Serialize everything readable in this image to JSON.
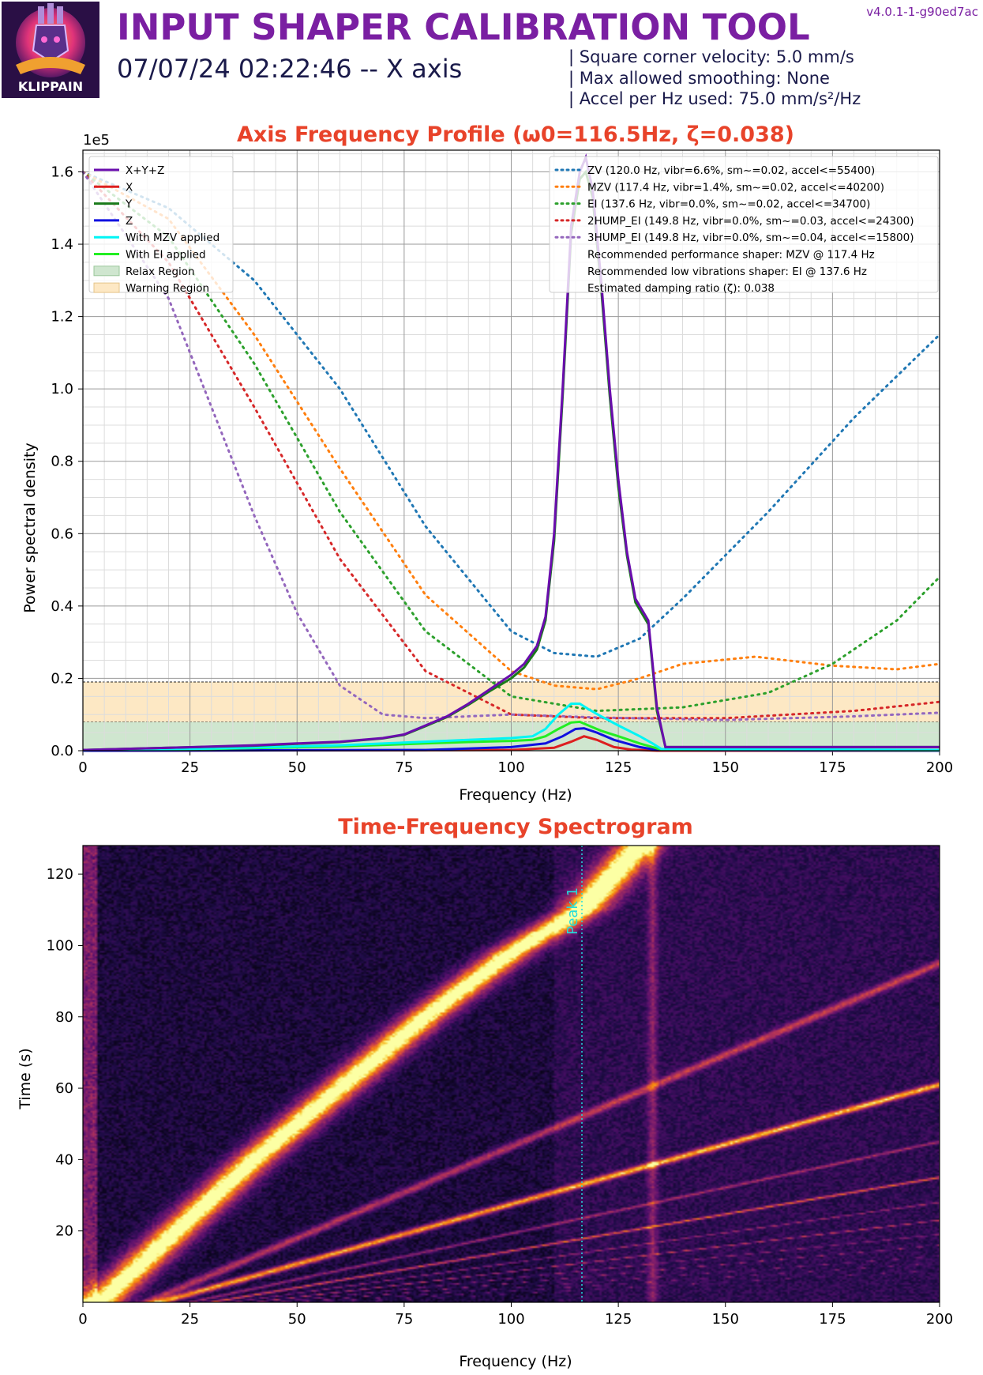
{
  "header": {
    "title": "INPUT SHAPER CALIBRATION TOOL",
    "subtitle": "07/07/24 02:22:46 -- X axis",
    "version": "v4.0.1-1-g90ed7ac",
    "logo_text": "KLIPPAIN",
    "params": [
      "| Square corner velocity: 5.0 mm/s",
      "| Max allowed smoothing: None",
      "| Accel per Hz used: 75.0 mm/s²/Hz"
    ]
  },
  "colors": {
    "title_purple": "#7a1fa2",
    "chart_title_red": "#e8432a",
    "xyz": "#6a0dad",
    "x": "#dd1f1f",
    "y": "#1a7a1a",
    "z": "#1010e0",
    "mzv_applied": "#00f5f5",
    "ei_applied": "#22ee22",
    "relax_region": "#cfe6cf",
    "warning_region": "#fde8c4",
    "shaper_zv": "#1f77b4",
    "shaper_mzv": "#ff7f0e",
    "shaper_ei": "#2ca02c",
    "shaper_2hump": "#d62728",
    "shaper_3hump": "#9467bd",
    "peak_line": "#22dddd"
  },
  "chart_data": [
    {
      "type": "line",
      "title": "Axis Frequency Profile (ω0=116.5Hz, ζ=0.038)",
      "xlabel": "Frequency (Hz)",
      "ylabel": "Power spectral density",
      "y_scale_label": "1e5",
      "xlim": [
        0,
        200
      ],
      "ylim": [
        0,
        1.66
      ],
      "x_ticks": [
        "0",
        "25",
        "50",
        "75",
        "100",
        "125",
        "150",
        "175",
        "200"
      ],
      "y_ticks": [
        "0.0",
        "0.2",
        "0.4",
        "0.6",
        "0.8",
        "1.0",
        "1.2",
        "1.4",
        "1.6"
      ],
      "grid": true,
      "regions": [
        {
          "name": "Relax Region",
          "from": 0,
          "to": 0.08
        },
        {
          "name": "Warning Region",
          "from": 0.08,
          "to": 0.19
        }
      ],
      "series": [
        {
          "name": "X+Y+Z",
          "x": [
            0,
            20,
            40,
            50,
            60,
            70,
            75,
            80,
            85,
            90,
            95,
            100,
            103,
            106,
            108,
            110,
            112,
            114,
            116,
            117.4,
            119,
            121,
            123,
            125,
            127,
            129,
            132,
            134,
            136,
            150,
            175,
            200
          ],
          "y": [
            0.002,
            0.008,
            0.015,
            0.02,
            0.025,
            0.035,
            0.045,
            0.07,
            0.095,
            0.13,
            0.17,
            0.21,
            0.24,
            0.29,
            0.37,
            0.6,
            1.0,
            1.45,
            1.6,
            1.64,
            1.55,
            1.3,
            1.0,
            0.75,
            0.55,
            0.42,
            0.36,
            0.12,
            0.01,
            0.01,
            0.01,
            0.01
          ]
        },
        {
          "name": "X",
          "x": [
            0,
            100,
            110,
            114,
            117,
            120,
            124,
            128,
            134,
            200
          ],
          "y": [
            0.0,
            0.002,
            0.008,
            0.025,
            0.04,
            0.03,
            0.01,
            0.003,
            0.0,
            0.0
          ]
        },
        {
          "name": "Y",
          "x": [
            0,
            20,
            40,
            50,
            60,
            70,
            75,
            80,
            85,
            90,
            95,
            100,
            103,
            106,
            108,
            110,
            112,
            114,
            116,
            117.4,
            119,
            121,
            123,
            125,
            127,
            129,
            132,
            134,
            136,
            150,
            175,
            200
          ],
          "y": [
            0.002,
            0.008,
            0.014,
            0.019,
            0.024,
            0.034,
            0.044,
            0.068,
            0.093,
            0.127,
            0.165,
            0.2,
            0.23,
            0.28,
            0.36,
            0.58,
            0.98,
            1.43,
            1.58,
            1.6,
            1.53,
            1.28,
            0.98,
            0.73,
            0.54,
            0.41,
            0.35,
            0.11,
            0.01,
            0.01,
            0.01,
            0.01
          ]
        },
        {
          "name": "Z",
          "x": [
            0,
            80,
            100,
            108,
            112,
            115,
            117,
            120,
            124,
            130,
            134,
            200
          ],
          "y": [
            0.0,
            0.002,
            0.01,
            0.02,
            0.04,
            0.06,
            0.062,
            0.05,
            0.03,
            0.01,
            0.002,
            0.0
          ]
        },
        {
          "name": "With MZV applied",
          "x": [
            0,
            30,
            60,
            80,
            90,
            100,
            105,
            108,
            111,
            114,
            116,
            118,
            121,
            125,
            130,
            133,
            135,
            200
          ],
          "y": [
            0.002,
            0.006,
            0.015,
            0.025,
            0.03,
            0.035,
            0.04,
            0.06,
            0.1,
            0.13,
            0.13,
            0.115,
            0.095,
            0.07,
            0.04,
            0.02,
            0.005,
            0.002
          ]
        },
        {
          "name": "With EI applied",
          "x": [
            0,
            30,
            60,
            80,
            90,
            100,
            105,
            108,
            111,
            114,
            116,
            118,
            121,
            125,
            130,
            133,
            135,
            200
          ],
          "y": [
            0.002,
            0.005,
            0.012,
            0.02,
            0.024,
            0.027,
            0.03,
            0.04,
            0.06,
            0.078,
            0.08,
            0.07,
            0.055,
            0.04,
            0.02,
            0.01,
            0.003,
            0.001
          ]
        },
        {
          "name": "ZV (120.0 Hz, vibr=6.6%, sm~=0.02, accel<=55400)",
          "dotted": true,
          "x": [
            0,
            20,
            40,
            60,
            80,
            100,
            110,
            120,
            130,
            140,
            160,
            180,
            200
          ],
          "y": [
            1.6,
            1.5,
            1.3,
            1.0,
            0.62,
            0.33,
            0.27,
            0.26,
            0.31,
            0.42,
            0.66,
            0.92,
            1.15
          ]
        },
        {
          "name": "MZV (117.4 Hz, vibr=1.4%, sm~=0.02, accel<=40200)",
          "dotted": true,
          "x": [
            0,
            20,
            40,
            60,
            80,
            100,
            110,
            120,
            130,
            140,
            157,
            175,
            190,
            200
          ],
          "y": [
            1.6,
            1.47,
            1.15,
            0.78,
            0.43,
            0.22,
            0.18,
            0.17,
            0.2,
            0.24,
            0.26,
            0.235,
            0.225,
            0.24
          ]
        },
        {
          "name": "EI (137.6 Hz, vibr=0.0%, sm~=0.02, accel<=34700)",
          "dotted": true,
          "x": [
            0,
            20,
            40,
            60,
            80,
            100,
            120,
            140,
            160,
            175,
            190,
            200
          ],
          "y": [
            1.6,
            1.42,
            1.07,
            0.66,
            0.33,
            0.15,
            0.11,
            0.12,
            0.16,
            0.24,
            0.36,
            0.48
          ]
        },
        {
          "name": "2HUMP_EI (149.8 Hz, vibr=0.0%, sm~=0.03, accel<=24300)",
          "dotted": true,
          "x": [
            0,
            20,
            40,
            60,
            80,
            100,
            120,
            150,
            180,
            200
          ],
          "y": [
            1.6,
            1.35,
            0.95,
            0.53,
            0.22,
            0.1,
            0.09,
            0.09,
            0.11,
            0.135
          ]
        },
        {
          "name": "3HUMP_EI (149.8 Hz, vibr=0.0%, sm~=0.04, accel<=15800)",
          "dotted": true,
          "x": [
            0,
            20,
            30,
            40,
            50,
            60,
            70,
            80,
            100,
            120,
            150,
            180,
            200
          ],
          "y": [
            1.6,
            1.25,
            0.95,
            0.65,
            0.38,
            0.18,
            0.1,
            0.09,
            0.1,
            0.092,
            0.085,
            0.095,
            0.105
          ]
        }
      ],
      "legend_left": [
        "X+Y+Z",
        "X",
        "Y",
        "Z",
        "With MZV applied",
        "With EI applied",
        "Relax Region",
        "Warning Region"
      ],
      "legend_right": [
        "ZV (120.0 Hz, vibr=6.6%, sm~=0.02, accel<=55400)",
        "MZV (117.4 Hz, vibr=1.4%, sm~=0.02, accel<=40200)",
        "EI (137.6 Hz, vibr=0.0%, sm~=0.02, accel<=34700)",
        "2HUMP_EI (149.8 Hz, vibr=0.0%, sm~=0.03, accel<=24300)",
        "3HUMP_EI (149.8 Hz, vibr=0.0%, sm~=0.04, accel<=15800)",
        "Recommended performance shaper: MZV @ 117.4 Hz",
        "Recommended low vibrations shaper: EI @ 137.6 Hz",
        "Estimated damping ratio (ζ): 0.038"
      ]
    },
    {
      "type": "heatmap",
      "title": "Time-Frequency Spectrogram",
      "xlabel": "Frequency (Hz)",
      "ylabel": "Time (s)",
      "xlim": [
        0,
        200
      ],
      "ylim": [
        0,
        128
      ],
      "x_ticks": [
        "0",
        "25",
        "50",
        "75",
        "100",
        "125",
        "150",
        "175",
        "200"
      ],
      "y_ticks": [
        "20",
        "40",
        "60",
        "80",
        "100",
        "120"
      ],
      "peak_marker": {
        "label": "Peak 1",
        "freq": 116.5
      },
      "harmonic_lines": [
        {
          "name": "fundamental",
          "points": [
            [
              4,
              0
            ],
            [
              20,
              18
            ],
            [
              40,
              40
            ],
            [
              60,
              60
            ],
            [
              80,
              80
            ],
            [
              100,
              98
            ],
            [
              116.5,
              110
            ],
            [
              130,
              128
            ]
          ],
          "intensity": 1.0,
          "width": 14
        },
        {
          "name": "h2",
          "points": [
            [
              15,
              0
            ],
            [
              200,
              95
            ]
          ],
          "intensity": 0.45,
          "width": 6
        },
        {
          "name": "h3",
          "points": [
            [
              18,
              0
            ],
            [
              200,
              61
            ]
          ],
          "intensity": 0.75,
          "width": 7
        },
        {
          "name": "h4",
          "points": [
            [
              25,
              0
            ],
            [
              200,
              45
            ]
          ],
          "intensity": 0.35,
          "width": 4
        },
        {
          "name": "h5",
          "points": [
            [
              30,
              0
            ],
            [
              200,
              35
            ]
          ],
          "intensity": 0.55,
          "width": 4
        },
        {
          "name": "h6",
          "points": [
            [
              35,
              0
            ],
            [
              200,
              28
            ]
          ],
          "intensity": 0.3,
          "width": 3
        },
        {
          "name": "h7",
          "points": [
            [
              40,
              0
            ],
            [
              200,
              23
            ]
          ],
          "intensity": 0.4,
          "width": 3
        },
        {
          "name": "h8",
          "points": [
            [
              45,
              0
            ],
            [
              200,
              19
            ]
          ],
          "intensity": 0.25,
          "width": 3
        },
        {
          "name": "h9",
          "points": [
            [
              50,
              0
            ],
            [
              200,
              16
            ]
          ],
          "intensity": 0.3,
          "width": 2
        },
        {
          "name": "h10",
          "points": [
            [
              55,
              0
            ],
            [
              200,
              13
            ]
          ],
          "intensity": 0.22,
          "width": 2
        },
        {
          "name": "h11",
          "points": [
            [
              60,
              0
            ],
            [
              200,
              11
            ]
          ],
          "intensity": 0.22,
          "width": 2
        },
        {
          "name": "h12",
          "points": [
            [
              65,
              0
            ],
            [
              200,
              9
            ]
          ],
          "intensity": 0.2,
          "width": 2
        }
      ],
      "vertical_bands": [
        {
          "freq": 133,
          "intensity": 0.28
        }
      ]
    }
  ]
}
